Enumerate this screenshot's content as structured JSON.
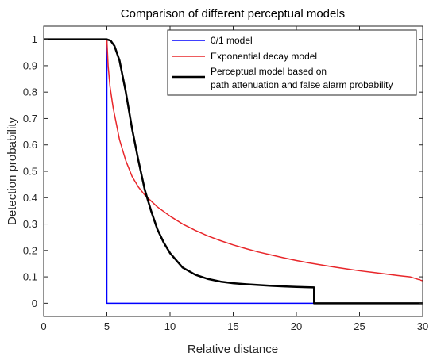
{
  "chart_data": {
    "type": "line",
    "title": "Comparison of different perceptual models",
    "xlabel": "Relative distance",
    "ylabel": "Detection probability",
    "xlim": [
      0,
      30
    ],
    "ylim": [
      -0.05,
      1.05
    ],
    "xticks": [
      0,
      5,
      10,
      15,
      20,
      25,
      30
    ],
    "yticks": [
      0,
      0.1,
      0.2,
      0.3,
      0.4,
      0.5,
      0.6,
      0.7,
      0.8,
      0.9,
      1
    ],
    "grid": false,
    "legend_position": "top-right",
    "legend_entries": [
      "0/1 model",
      "Exponential decay model",
      "Perceptual model based on",
      "path attenuation and false alarm probability"
    ],
    "series": [
      {
        "name": "0/1 model",
        "color": "#0000ff",
        "x": [
          0,
          5,
          5,
          30
        ],
        "y": [
          1,
          1,
          0,
          0
        ]
      },
      {
        "name": "Exponential decay model",
        "color": "#e8262a",
        "x": [
          0,
          5,
          5.1,
          5.25,
          5.5,
          6,
          6.5,
          7,
          7.5,
          8,
          9,
          10,
          11,
          12,
          13,
          14,
          15,
          16,
          17,
          18,
          19,
          20,
          21,
          22,
          23,
          24,
          25,
          26,
          27,
          28,
          29,
          30
        ],
        "y": [
          1,
          1,
          0.9,
          0.82,
          0.74,
          0.62,
          0.54,
          0.48,
          0.44,
          0.41,
          0.365,
          0.33,
          0.3,
          0.276,
          0.255,
          0.237,
          0.221,
          0.207,
          0.194,
          0.183,
          0.172,
          0.162,
          0.153,
          0.145,
          0.137,
          0.13,
          0.123,
          0.117,
          0.111,
          0.105,
          0.1,
          0.085
        ]
      },
      {
        "name": "Perceptual model based on path attenuation and false alarm probability",
        "color": "#000000",
        "x": [
          0,
          5,
          5.3,
          5.6,
          6,
          6.5,
          7,
          7.5,
          8,
          8.5,
          9,
          9.5,
          10,
          11,
          12,
          13,
          14,
          15,
          16,
          17,
          18,
          19,
          20,
          21.4,
          21.4,
          30
        ],
        "y": [
          1,
          1,
          0.995,
          0.975,
          0.92,
          0.8,
          0.66,
          0.54,
          0.43,
          0.35,
          0.28,
          0.23,
          0.19,
          0.135,
          0.108,
          0.092,
          0.082,
          0.076,
          0.072,
          0.069,
          0.066,
          0.064,
          0.062,
          0.06,
          0,
          0
        ]
      }
    ]
  }
}
